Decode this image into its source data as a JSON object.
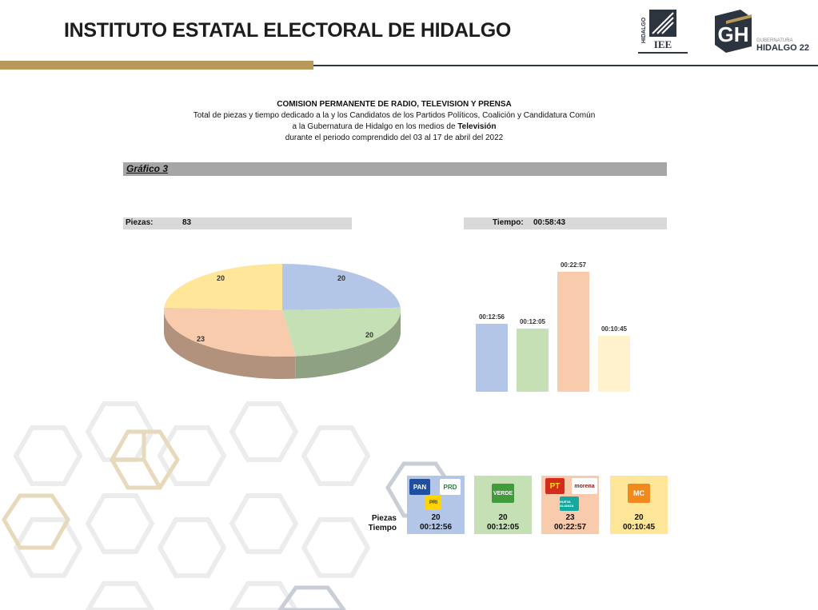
{
  "header": {
    "institution": "INSTITUTO ESTATAL ELECTORAL DE HIDALGO",
    "logo_iee_text": "IEE",
    "logo_iee_side": "HIDALGO",
    "logo_gh_letters": "GH",
    "logo_gh_small": "GUBERNATURA",
    "logo_gh_text": "HIDALGO 22"
  },
  "heading": {
    "line1": "COMISION PERMANENTE DE RADIO, TELEVISION Y PRENSA",
    "line2": "Total de piezas y tiempo dedicado a la y los Candidatos de los Partidos Políticos, Coalición y Candidatura Común",
    "line3_prefix": "a la Gubernatura de Hidalgo en los medios de ",
    "line3_bold": "Televisión",
    "line4": "durante el periodo comprendido del 03 al 17 de abril del 2022"
  },
  "grafico_label": "Gráfico 3",
  "piezas": {
    "label": "Piezas:",
    "value": "83"
  },
  "tiempo": {
    "label": "Tiempo:",
    "value": "00:58:43"
  },
  "colors": {
    "blue": "#b3c6e7",
    "green": "#c5e0b4",
    "salmon": "#f8cbad",
    "yellow": "#ffe699",
    "gold": "#b8995a",
    "navy": "#2c3440"
  },
  "chart_data": [
    {
      "type": "pie",
      "categories": [
        "PAN-PRI-PRD",
        "VERDE",
        "PT-MORENA-NUEVA ALIANZA",
        "MC"
      ],
      "values": [
        20,
        20,
        23,
        20
      ],
      "colors": [
        "#b3c6e7",
        "#c5e0b4",
        "#f8cbad",
        "#ffe699"
      ],
      "labels": [
        "20",
        "20",
        "23",
        "20"
      ]
    },
    {
      "type": "bar",
      "categories": [
        "PAN-PRI-PRD",
        "VERDE",
        "PT-MORENA-NUEVA ALIANZA",
        "MC"
      ],
      "values": [
        776,
        725,
        1377,
        645
      ],
      "labels": [
        "00:12:56",
        "00:12:05",
        "00:22:57",
        "00:10:45"
      ],
      "colors": [
        "#b3c6e7",
        "#c5e0b4",
        "#f8cbad",
        "#fff2cc"
      ],
      "ylim": [
        0,
        1560
      ]
    }
  ],
  "table": {
    "row_labels": [
      "Piezas",
      "Tiempo"
    ],
    "cells": [
      {
        "piezas": "20",
        "tiempo": "00:12:56",
        "color": "#b3c6e7",
        "logos": [
          "PAN",
          "PRD",
          "PRI"
        ]
      },
      {
        "piezas": "20",
        "tiempo": "00:12:05",
        "color": "#c5e0b4",
        "logos": [
          "VERDE"
        ]
      },
      {
        "piezas": "23",
        "tiempo": "00:22:57",
        "color": "#f8cbad",
        "logos": [
          "PT",
          "morena",
          "NUEVA ALIANZA"
        ]
      },
      {
        "piezas": "20",
        "tiempo": "00:10:45",
        "color": "#ffe699",
        "logos": [
          "MC"
        ]
      }
    ]
  }
}
